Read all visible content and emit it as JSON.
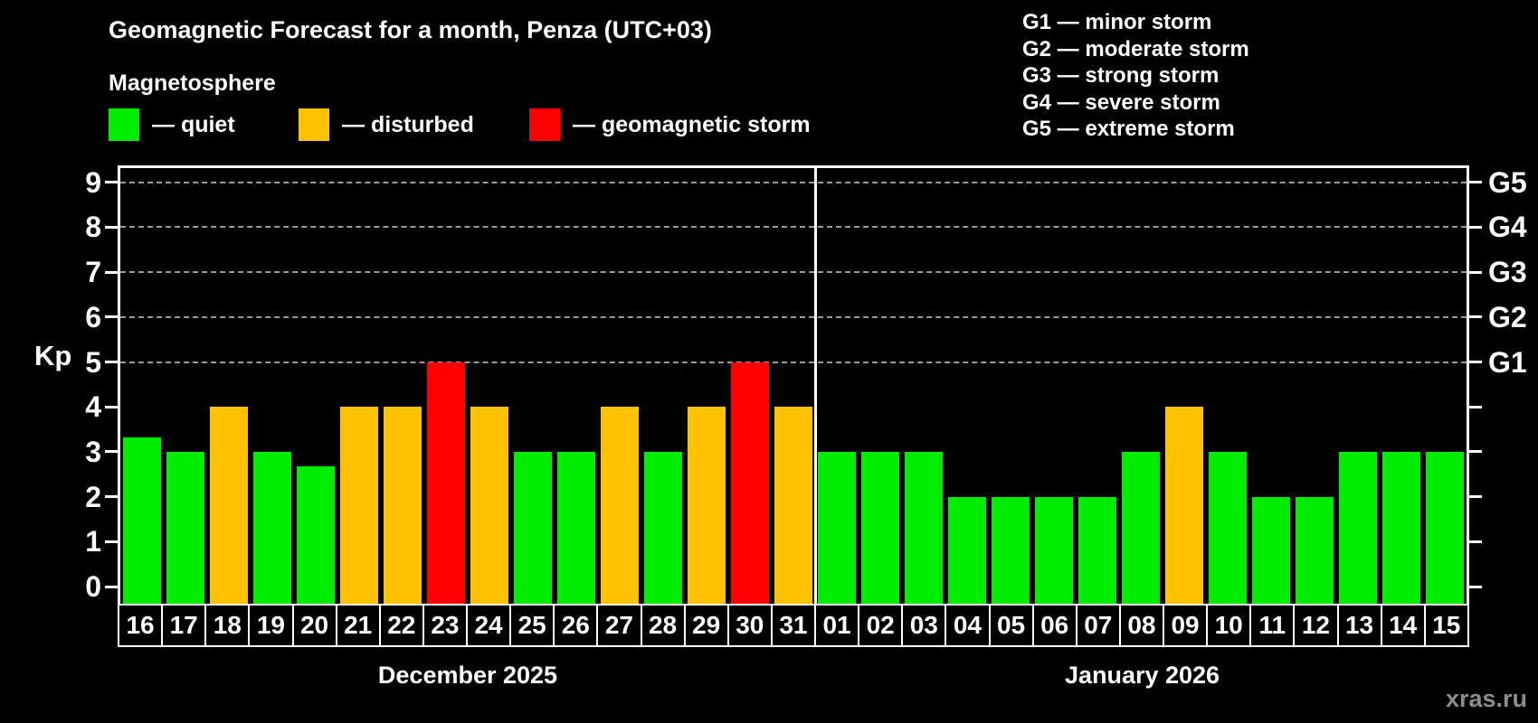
{
  "title": "Geomagnetic Forecast for a month, Penza (UTC+03)",
  "subtitle": "Magnetosphere",
  "legend": {
    "items": [
      {
        "key": "quiet",
        "label": "— quiet",
        "color": "#00ec00"
      },
      {
        "key": "disturbed",
        "label": "— disturbed",
        "color": "#ffc200"
      },
      {
        "key": "storm",
        "label": "— geomagnetic storm",
        "color": "#ff0000"
      }
    ]
  },
  "g_legend": [
    "G1 — minor storm",
    "G2 — moderate storm",
    "G3 — strong storm",
    "G4 — severe storm",
    "G5 — extreme storm"
  ],
  "watermark": "xras.ru",
  "chart_data": {
    "type": "bar",
    "ylabel": "Kp",
    "ylim": [
      0,
      9
    ],
    "yticks": [
      0,
      1,
      2,
      3,
      4,
      5,
      6,
      7,
      8,
      9
    ],
    "gridlines": [
      5,
      6,
      7,
      8,
      9
    ],
    "right_axis_labels": [
      {
        "value": 5,
        "label": "G1"
      },
      {
        "value": 6,
        "label": "G2"
      },
      {
        "value": 7,
        "label": "G3"
      },
      {
        "value": 8,
        "label": "G4"
      },
      {
        "value": 9,
        "label": "G5"
      }
    ],
    "colors": {
      "quiet": "#00ec00",
      "disturbed": "#ffc200",
      "storm": "#ff0000"
    },
    "months": [
      {
        "label": "December 2025",
        "days": [
          {
            "day": "16",
            "kp": 3.33,
            "status": "quiet"
          },
          {
            "day": "17",
            "kp": 3,
            "status": "quiet"
          },
          {
            "day": "18",
            "kp": 4,
            "status": "disturbed"
          },
          {
            "day": "19",
            "kp": 3,
            "status": "quiet"
          },
          {
            "day": "20",
            "kp": 2.67,
            "status": "quiet"
          },
          {
            "day": "21",
            "kp": 4,
            "status": "disturbed"
          },
          {
            "day": "22",
            "kp": 4,
            "status": "disturbed"
          },
          {
            "day": "23",
            "kp": 5,
            "status": "storm"
          },
          {
            "day": "24",
            "kp": 4,
            "status": "disturbed"
          },
          {
            "day": "25",
            "kp": 3,
            "status": "quiet"
          },
          {
            "day": "26",
            "kp": 3,
            "status": "quiet"
          },
          {
            "day": "27",
            "kp": 4,
            "status": "disturbed"
          },
          {
            "day": "28",
            "kp": 3,
            "status": "quiet"
          },
          {
            "day": "29",
            "kp": 4,
            "status": "disturbed"
          },
          {
            "day": "30",
            "kp": 5,
            "status": "storm"
          },
          {
            "day": "31",
            "kp": 4,
            "status": "disturbed"
          }
        ]
      },
      {
        "label": "January 2026",
        "days": [
          {
            "day": "01",
            "kp": 3,
            "status": "quiet"
          },
          {
            "day": "02",
            "kp": 3,
            "status": "quiet"
          },
          {
            "day": "03",
            "kp": 3,
            "status": "quiet"
          },
          {
            "day": "04",
            "kp": 2,
            "status": "quiet"
          },
          {
            "day": "05",
            "kp": 2,
            "status": "quiet"
          },
          {
            "day": "06",
            "kp": 2,
            "status": "quiet"
          },
          {
            "day": "07",
            "kp": 2,
            "status": "quiet"
          },
          {
            "day": "08",
            "kp": 3,
            "status": "quiet"
          },
          {
            "day": "09",
            "kp": 4,
            "status": "disturbed"
          },
          {
            "day": "10",
            "kp": 3,
            "status": "quiet"
          },
          {
            "day": "11",
            "kp": 2,
            "status": "quiet"
          },
          {
            "day": "12",
            "kp": 2,
            "status": "quiet"
          },
          {
            "day": "13",
            "kp": 3,
            "status": "quiet"
          },
          {
            "day": "14",
            "kp": 3,
            "status": "quiet"
          },
          {
            "day": "15",
            "kp": 3,
            "status": "quiet"
          }
        ]
      }
    ]
  }
}
